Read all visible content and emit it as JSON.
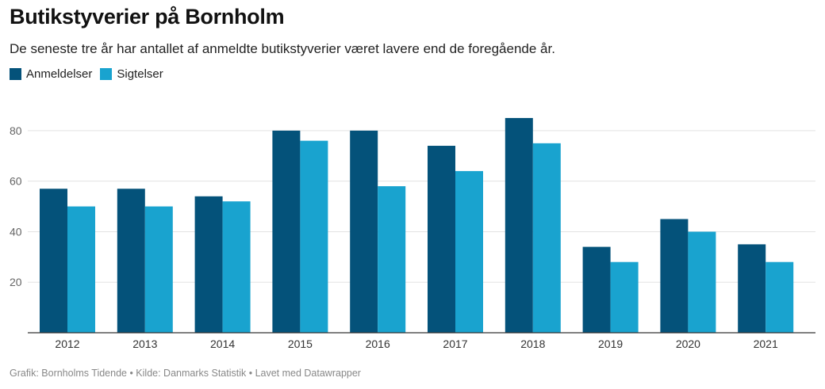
{
  "title": "Butikstyverier på Bornholm",
  "subtitle": "De seneste tre år har antallet af anmeldte butikstyverier været lavere end de foregående år.",
  "footer": "Grafik: Bornholms Tidende • Kilde: Danmarks Statistik • Lavet med Datawrapper",
  "chart_data": {
    "type": "bar",
    "title": "Butikstyverier på Bornholm",
    "xlabel": "",
    "ylabel": "",
    "ylim": [
      0,
      90
    ],
    "yticks": [
      20,
      40,
      60,
      80
    ],
    "grid": true,
    "legend_position": "top-left",
    "categories": [
      "2012",
      "2013",
      "2014",
      "2015",
      "2016",
      "2017",
      "2018",
      "2019",
      "2020",
      "2021"
    ],
    "series": [
      {
        "name": "Anmeldelser",
        "color": "#04527a",
        "values": [
          57,
          57,
          54,
          80,
          80,
          74,
          85,
          34,
          45,
          35
        ]
      },
      {
        "name": "Sigtelser",
        "color": "#19a3cf",
        "values": [
          50,
          50,
          52,
          76,
          58,
          64,
          75,
          28,
          40,
          28
        ]
      }
    ]
  }
}
